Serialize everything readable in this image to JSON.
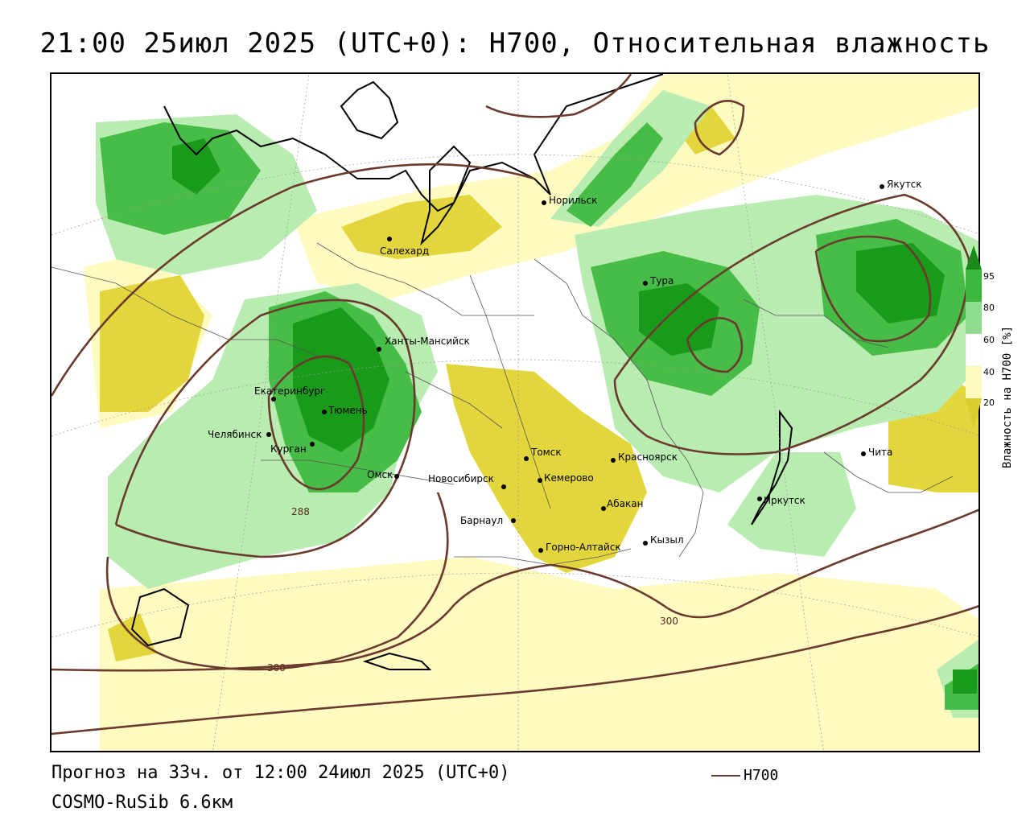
{
  "title": "21:00 25июл 2025 (UTC+0): H700, Относительная влажность",
  "forecast": "Прогноз на 33ч. от 12:00 24июл 2025 (UTC+0)",
  "model": "COSMO-RuSib 6.6км",
  "legend": {
    "line_label": "H700",
    "line_color": "#6b3a2e"
  },
  "colorbar": {
    "title": "Влажность на H700 [%]",
    "ticks": [
      "95",
      "80",
      "60",
      "40",
      "20"
    ],
    "colors": [
      "#1a8a1a",
      "#3cb83c",
      "#8fdc8f",
      "#d8f5d0",
      "#ffffff",
      "#fffbc0",
      "#f0e890",
      "#d9cc30"
    ]
  },
  "contour_labels": [
    "288",
    "300",
    "300"
  ],
  "cities": [
    "Якутск",
    "Норильск",
    "Салехард",
    "Тура",
    "Ханты-Мансийск",
    "Екатеринбург",
    "Тюмень",
    "Челябинск",
    "Курган",
    "Омск",
    "Томск",
    "Красноярск",
    "Новосибирск",
    "Кемерово",
    "Абакан",
    "Барнаул",
    "Иркутск",
    "Чита",
    "Кызыл",
    "Горно-Алтайск"
  ]
}
